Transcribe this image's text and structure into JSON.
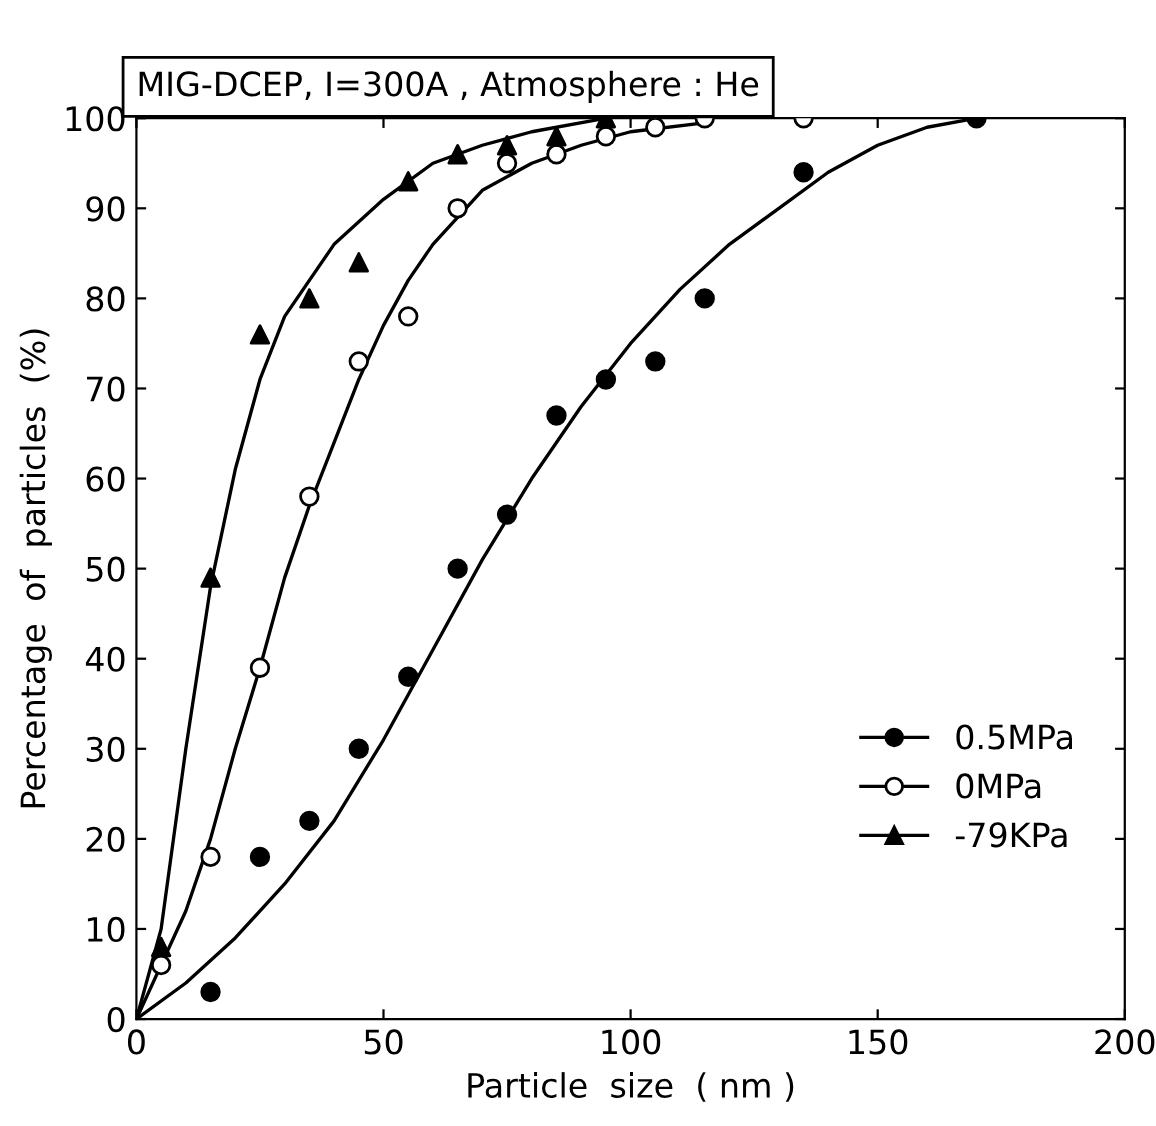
{
  "chart_data": {
    "type": "scatter",
    "title": "MIG-DCEP, I=300A , Atmosphere : He",
    "xlabel": "Particle  size  ( nm )",
    "ylabel": "Percentage  of  particles  (%)",
    "xlim": [
      0,
      200
    ],
    "ylim": [
      0,
      100
    ],
    "xticks": [
      0,
      50,
      100,
      150,
      200
    ],
    "yticks": [
      0,
      10,
      20,
      30,
      40,
      50,
      60,
      70,
      80,
      90,
      100
    ],
    "grid": false,
    "legend": "bottom right",
    "series": [
      {
        "name": "0.5MPa",
        "marker": "circle",
        "color": "#000000",
        "x": [
          15,
          25,
          35,
          45,
          55,
          65,
          75,
          85,
          95,
          105,
          115,
          135,
          170
        ],
        "values": [
          3,
          18,
          22,
          30,
          38,
          50,
          56,
          67,
          71,
          73,
          80,
          94,
          100
        ]
      },
      {
        "name": "0MPa",
        "marker": "circle",
        "color": "#ffffff",
        "x": [
          5,
          15,
          25,
          35,
          45,
          55,
          65,
          75,
          85,
          95,
          105,
          115,
          135
        ],
        "values": [
          6,
          18,
          39,
          58,
          73,
          78,
          90,
          95,
          96,
          98,
          99,
          100,
          100
        ]
      },
      {
        "name": "-79KPa",
        "marker": "triangle",
        "color": "#000000",
        "x": [
          5,
          15,
          25,
          35,
          45,
          55,
          65,
          75,
          85,
          95
        ],
        "values": [
          8,
          49,
          76,
          80,
          84,
          93,
          96,
          97,
          98,
          100
        ]
      },
      {
        "type": "line",
        "color": "#000000",
        "x": [
          0,
          10,
          20,
          30,
          40,
          50,
          60,
          70,
          80,
          90,
          100,
          110,
          120,
          130,
          140,
          150,
          160,
          170
        ],
        "values": [
          0,
          4,
          9,
          15,
          22,
          31,
          41,
          51,
          60,
          68,
          75,
          81,
          86,
          90,
          94,
          97,
          99,
          100
        ]
      },
      {
        "type": "line",
        "color": "#000000",
        "x": [
          0,
          5,
          10,
          15,
          20,
          25,
          30,
          35,
          40,
          45,
          50,
          55,
          60,
          65,
          70,
          80,
          90,
          100,
          115
        ],
        "values": [
          0,
          6,
          12,
          20,
          30,
          39,
          49,
          57,
          64,
          71,
          77,
          82,
          86,
          89,
          92,
          95,
          97,
          98.5,
          99.5
        ]
      },
      {
        "type": "line",
        "color": "#000000",
        "x": [
          0,
          5,
          10,
          15,
          20,
          25,
          30,
          40,
          50,
          60,
          70,
          80,
          95
        ],
        "values": [
          0,
          10,
          30,
          48,
          61,
          71,
          78,
          86,
          91,
          95,
          97,
          98.5,
          100
        ]
      }
    ]
  }
}
